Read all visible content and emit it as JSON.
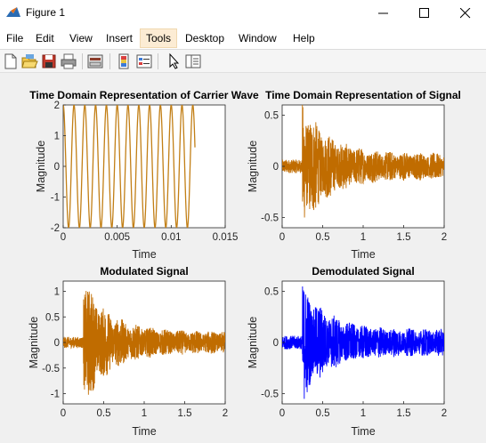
{
  "window": {
    "title": "Figure 1",
    "icon": "matlab-figure-icon",
    "controls": [
      "minimize-icon",
      "maximize-icon",
      "close-icon"
    ]
  },
  "menu": [
    {
      "label": "File"
    },
    {
      "label": "Edit"
    },
    {
      "label": "View"
    },
    {
      "label": "Insert"
    },
    {
      "label": "Tools",
      "active": true
    },
    {
      "label": "Desktop"
    },
    {
      "label": "Window"
    },
    {
      "label": "Help"
    }
  ],
  "toolbar": [
    "new-figure-icon",
    "open-file-icon",
    "save-icon",
    "print-icon",
    "link-plot-icon",
    "insert-colorbar-icon",
    "insert-legend-icon",
    "edit-plot-pointer-icon",
    "property-inspector-icon"
  ],
  "colors": {
    "carrier": "#c27f16",
    "signal": "#c06c00",
    "modulated": "#c06c00",
    "demodulated": "#0000ff"
  },
  "chart_data": [
    {
      "type": "line",
      "title": "Time Domain Representation of Carrier Wave",
      "xlabel": "Time",
      "ylabel": "Magnitude",
      "xlim": [
        0,
        0.015
      ],
      "ylim": [
        -2,
        2
      ],
      "xticks": [
        "0",
        "0.005",
        "0.01",
        "0.015"
      ],
      "yticks": [
        "2",
        "1",
        "0",
        "-1",
        "-2"
      ],
      "series": [
        {
          "amplitude": 2,
          "frequency_hz": 1000,
          "x_range": [
            0,
            0.0122
          ]
        }
      ]
    },
    {
      "type": "line",
      "title": "Time Domain Representation of Signal",
      "xlabel": "Time",
      "ylabel": "Magnitude",
      "xlim": [
        0,
        2
      ],
      "ylim": [
        -0.6,
        0.6
      ],
      "xticks": [
        "0",
        "0.5",
        "1",
        "1.5",
        "2"
      ],
      "yticks": [
        "0.5",
        "0",
        "-0.5"
      ],
      "series": [
        {
          "onset": 0.25,
          "peak": 0.6,
          "decay_level": 0.12
        }
      ]
    },
    {
      "type": "line",
      "title": "Modulated Signal",
      "xlabel": "Time",
      "ylabel": "Magnitude",
      "xlim": [
        0,
        2
      ],
      "ylim": [
        -1.2,
        1.2
      ],
      "xticks": [
        "0",
        "0.5",
        "1",
        "1.5",
        "2"
      ],
      "yticks": [
        "1",
        "0.5",
        "0",
        "-0.5",
        "-1"
      ],
      "series": [
        {
          "onset": 0.25,
          "peak": 1.2,
          "decay_level": 0.2
        }
      ]
    },
    {
      "type": "line",
      "title": "Demodulated Signal",
      "xlabel": "Time",
      "ylabel": "Magnitude",
      "xlim": [
        0,
        2
      ],
      "ylim": [
        -0.6,
        0.6
      ],
      "xticks": [
        "0",
        "0.5",
        "1",
        "1.5",
        "2"
      ],
      "yticks": [
        "0.5",
        "0",
        "-0.5"
      ],
      "series": [
        {
          "onset": 0.25,
          "peak": 0.55,
          "decay_level": 0.12
        }
      ]
    }
  ]
}
